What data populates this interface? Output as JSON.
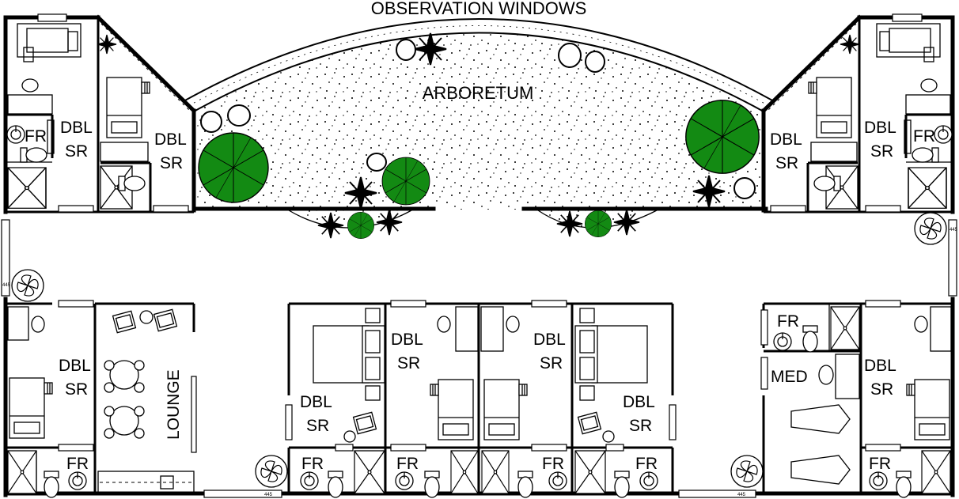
{
  "labels": {
    "observation_windows": "OBSERVATION WINDOWS",
    "arboretum": "ARBORETUM",
    "dbl": "DBL",
    "sr": "SR",
    "fr": "FR",
    "lounge": "LOUNGE",
    "med": "MED",
    "door_tag": "445"
  },
  "colors": {
    "plant": "#138a13",
    "wall": "#000000",
    "background": "#ffffff"
  }
}
